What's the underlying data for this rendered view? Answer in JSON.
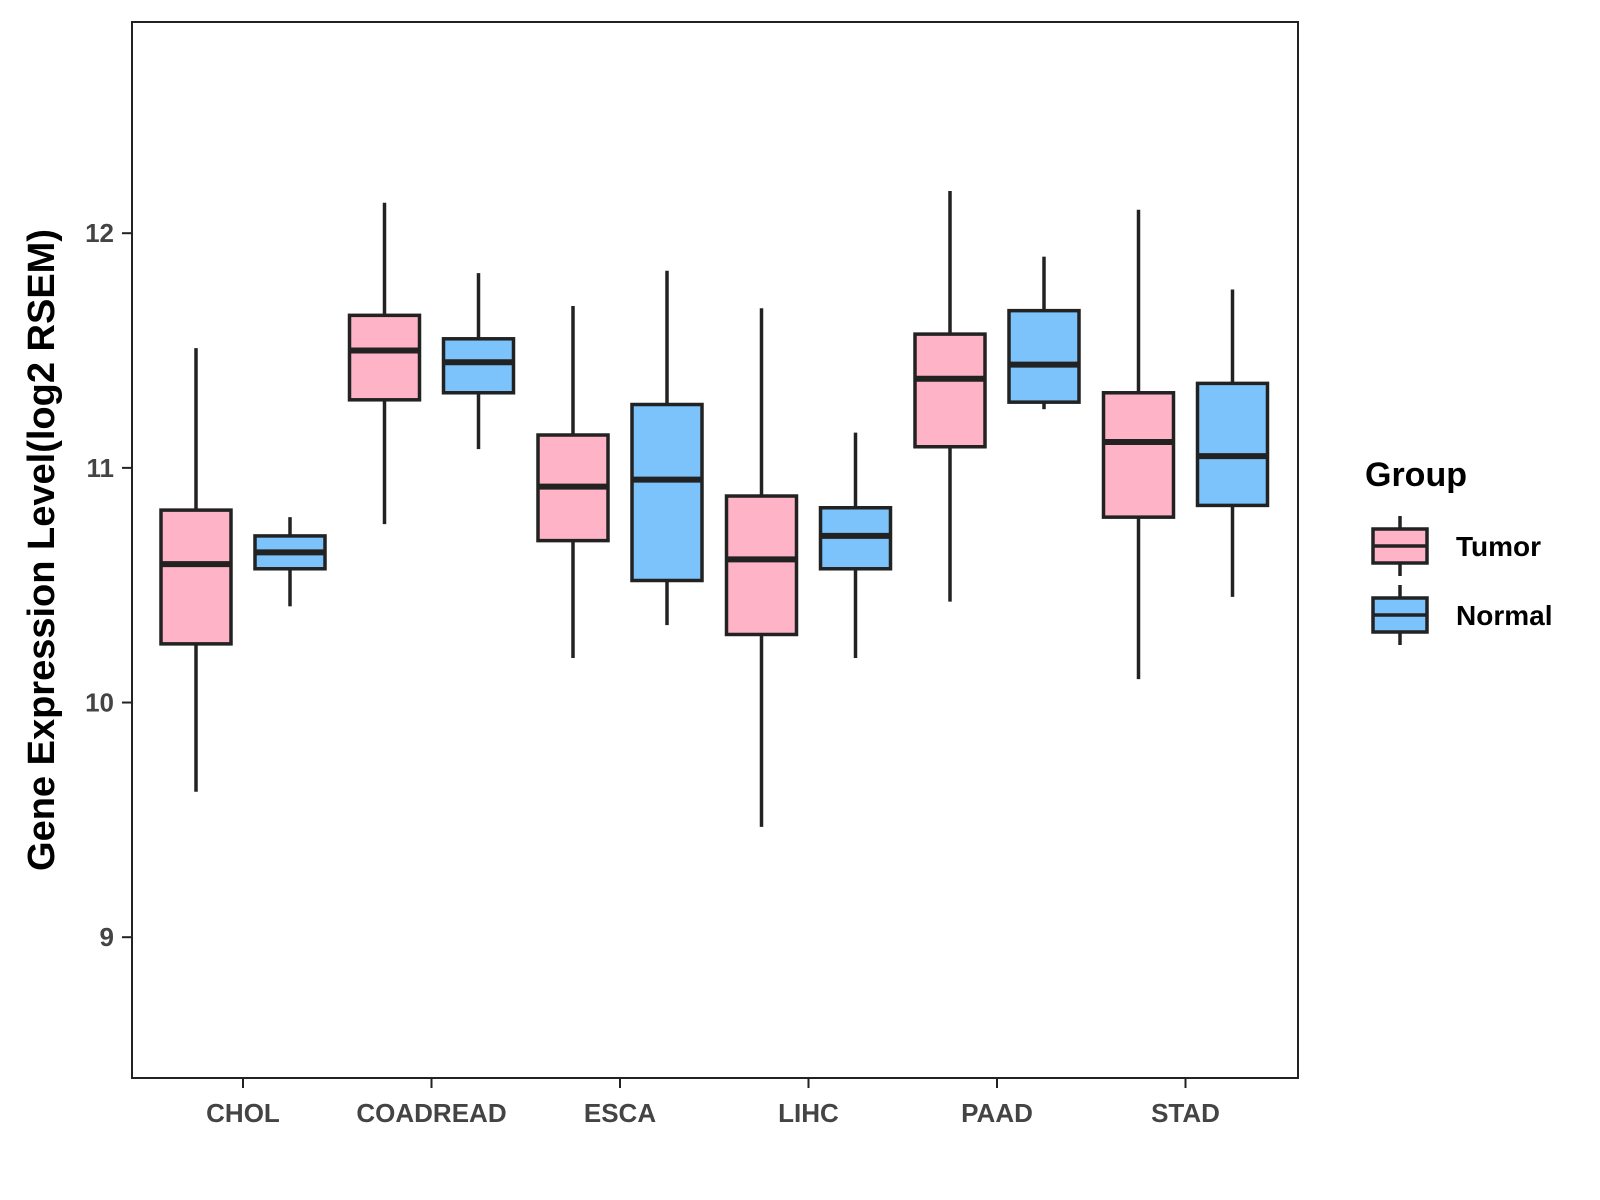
{
  "chart_data": {
    "type": "box",
    "title": "",
    "xlabel": "",
    "ylabel": "Gene Expression Level(log2 RSEM)",
    "ylim": [
      8.4,
      12.9
    ],
    "yticks": [
      9,
      10,
      11,
      12
    ],
    "grid": false,
    "legend": {
      "title": "Group",
      "position": "right",
      "entries": [
        {
          "name": "Tumor",
          "color": "#FFB3C6"
        },
        {
          "name": "Normal",
          "color": "#7BC3FA"
        }
      ]
    },
    "categories": [
      "CHOL",
      "COADREAD",
      "ESCA",
      "LIHC",
      "PAAD",
      "STAD"
    ],
    "series": [
      {
        "name": "Tumor",
        "color": "#FFB3C6",
        "boxes": [
          {
            "min": 9.62,
            "q1": 10.25,
            "median": 10.59,
            "q3": 10.82,
            "max": 11.51
          },
          {
            "min": 10.76,
            "q1": 11.29,
            "median": 11.5,
            "q3": 11.65,
            "max": 12.13
          },
          {
            "min": 10.19,
            "q1": 10.69,
            "median": 10.92,
            "q3": 11.14,
            "max": 11.69
          },
          {
            "min": 9.47,
            "q1": 10.29,
            "median": 10.61,
            "q3": 10.88,
            "max": 11.68
          },
          {
            "min": 10.43,
            "q1": 11.09,
            "median": 11.38,
            "q3": 11.57,
            "max": 12.18
          },
          {
            "min": 10.1,
            "q1": 10.79,
            "median": 11.11,
            "q3": 11.32,
            "max": 12.1
          }
        ]
      },
      {
        "name": "Normal",
        "color": "#7BC3FA",
        "boxes": [
          {
            "min": 10.41,
            "q1": 10.57,
            "median": 10.64,
            "q3": 10.71,
            "max": 10.79
          },
          {
            "min": 11.08,
            "q1": 11.32,
            "median": 11.45,
            "q3": 11.55,
            "max": 11.83
          },
          {
            "min": 10.33,
            "q1": 10.52,
            "median": 10.95,
            "q3": 11.27,
            "max": 11.84
          },
          {
            "min": 10.19,
            "q1": 10.57,
            "median": 10.71,
            "q3": 10.83,
            "max": 11.15
          },
          {
            "min": 11.25,
            "q1": 11.28,
            "median": 11.44,
            "q3": 11.67,
            "max": 11.9
          },
          {
            "min": 10.45,
            "q1": 10.84,
            "median": 11.05,
            "q3": 11.36,
            "max": 11.76
          }
        ]
      }
    ]
  }
}
